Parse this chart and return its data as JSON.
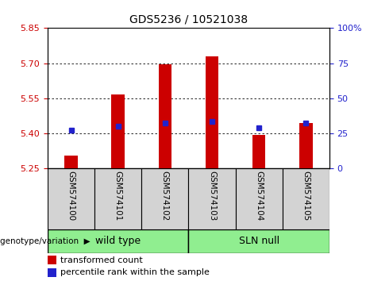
{
  "title": "GDS5236 / 10521038",
  "samples": [
    "GSM574100",
    "GSM574101",
    "GSM574102",
    "GSM574103",
    "GSM574104",
    "GSM574105"
  ],
  "groups": [
    "wild type",
    "wild type",
    "wild type",
    "SLN null",
    "SLN null",
    "SLN null"
  ],
  "bar_base": 5.25,
  "red_tops": [
    5.305,
    5.565,
    5.695,
    5.73,
    5.395,
    5.445
  ],
  "blue_values": [
    5.415,
    5.43,
    5.445,
    5.45,
    5.425,
    5.445
  ],
  "ylim_left": [
    5.25,
    5.85
  ],
  "ylim_right": [
    0,
    100
  ],
  "yticks_left": [
    5.25,
    5.4,
    5.55,
    5.7,
    5.85
  ],
  "yticks_right": [
    0,
    25,
    50,
    75,
    100
  ],
  "ytick_labels_right": [
    "0",
    "25",
    "50",
    "75",
    "100%"
  ],
  "bar_color": "#cc0000",
  "dot_color": "#2222cc",
  "bar_width": 0.28,
  "left_tick_color": "#cc0000",
  "right_tick_color": "#2222cc",
  "legend_labels": [
    "transformed count",
    "percentile rank within the sample"
  ],
  "genotype_label": "genotype/variation",
  "group_box_color": "#90ee90",
  "sample_box_color": "#d3d3d3",
  "chart_bg": "#ffffff",
  "grid_color": "#000000",
  "title_fontsize": 10
}
